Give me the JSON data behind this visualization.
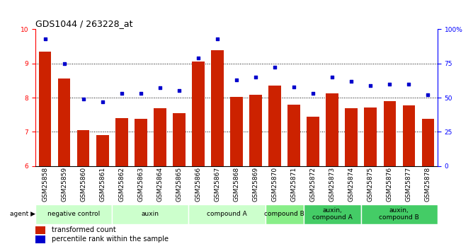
{
  "title": "GDS1044 / 263228_at",
  "samples": [
    "GSM25858",
    "GSM25859",
    "GSM25860",
    "GSM25861",
    "GSM25862",
    "GSM25863",
    "GSM25864",
    "GSM25865",
    "GSM25866",
    "GSM25867",
    "GSM25868",
    "GSM25869",
    "GSM25870",
    "GSM25871",
    "GSM25872",
    "GSM25873",
    "GSM25874",
    "GSM25875",
    "GSM25876",
    "GSM25877",
    "GSM25878"
  ],
  "bar_values": [
    9.35,
    8.55,
    7.05,
    6.9,
    7.4,
    7.38,
    7.68,
    7.55,
    9.05,
    9.38,
    8.02,
    8.08,
    8.35,
    7.8,
    7.45,
    8.12,
    7.68,
    7.72,
    7.9,
    7.78,
    7.38
  ],
  "dot_values_pct": [
    93,
    75,
    49,
    47,
    53,
    53,
    57,
    55,
    79,
    93,
    63,
    65,
    72,
    58,
    53,
    65,
    62,
    59,
    60,
    60,
    52
  ],
  "ylim_left": [
    6,
    10
  ],
  "ylim_right": [
    0,
    100
  ],
  "yticks_left": [
    6,
    7,
    8,
    9,
    10
  ],
  "yticks_right": [
    0,
    25,
    50,
    75,
    100
  ],
  "bar_color": "#CC2200",
  "dot_color": "#0000CC",
  "agent_groups": [
    {
      "label": "negative control",
      "start": 0,
      "end": 3,
      "color": "#CCFFCC"
    },
    {
      "label": "auxin",
      "start": 4,
      "end": 7,
      "color": "#CCFFCC"
    },
    {
      "label": "compound A",
      "start": 8,
      "end": 11,
      "color": "#CCFFCC"
    },
    {
      "label": "compound B",
      "start": 12,
      "end": 13,
      "color": "#88EE88"
    },
    {
      "label": "auxin,\ncompound A",
      "start": 14,
      "end": 16,
      "color": "#44CC66"
    },
    {
      "label": "auxin,\ncompound B",
      "start": 17,
      "end": 20,
      "color": "#44CC66"
    }
  ],
  "legend_bar_label": "transformed count",
  "legend_dot_label": "percentile rank within the sample",
  "title_fontsize": 9,
  "tick_fontsize": 6.5,
  "label_fontsize": 7
}
